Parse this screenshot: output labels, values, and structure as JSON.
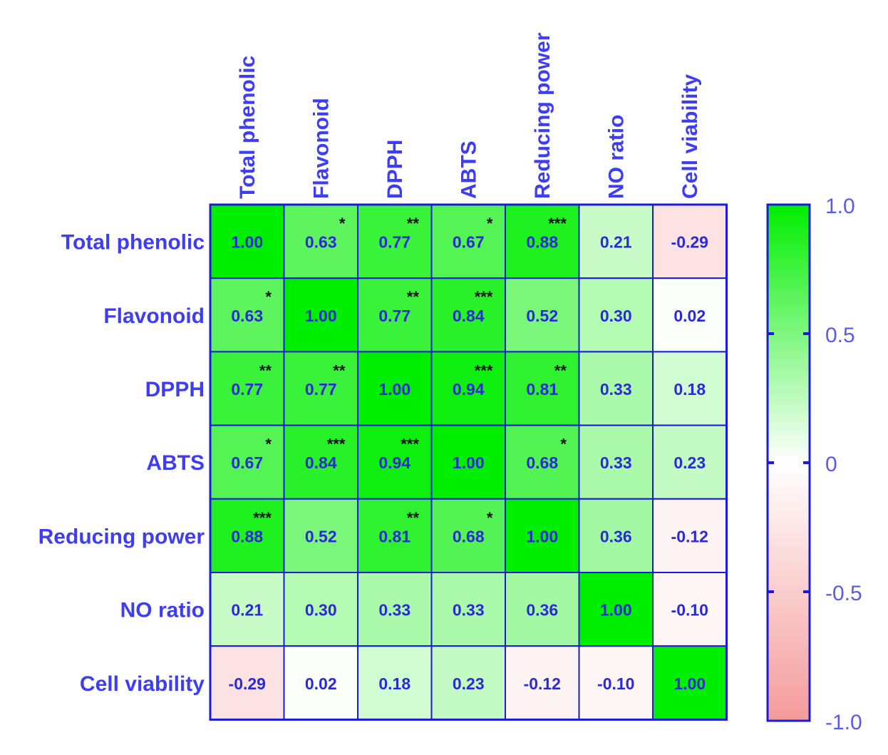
{
  "chart_data": {
    "type": "heatmap",
    "variables": [
      "Total phenolic",
      "Flavonoid",
      "DPPH",
      "ABTS",
      "Reducing power",
      "NO ratio",
      "Cell viability"
    ],
    "values": [
      [
        1.0,
        0.63,
        0.77,
        0.67,
        0.88,
        0.21,
        -0.29
      ],
      [
        0.63,
        1.0,
        0.77,
        0.84,
        0.52,
        0.3,
        0.02
      ],
      [
        0.77,
        0.77,
        1.0,
        0.94,
        0.81,
        0.33,
        0.18
      ],
      [
        0.67,
        0.84,
        0.94,
        1.0,
        0.68,
        0.33,
        0.23
      ],
      [
        0.88,
        0.52,
        0.81,
        0.68,
        1.0,
        0.36,
        -0.12
      ],
      [
        0.21,
        0.3,
        0.33,
        0.33,
        0.36,
        1.0,
        -0.1
      ],
      [
        -0.29,
        0.02,
        0.18,
        0.23,
        -0.12,
        -0.1,
        1.0
      ]
    ],
    "labels": [
      [
        "1.00",
        "0.63",
        "0.77",
        "0.67",
        "0.88",
        "0.21",
        "-0.29"
      ],
      [
        "0.63",
        "1.00",
        "0.77",
        "0.84",
        "0.52",
        "0.30",
        "0.02"
      ],
      [
        "0.77",
        "0.77",
        "1.00",
        "0.94",
        "0.81",
        "0.33",
        "0.18"
      ],
      [
        "0.67",
        "0.84",
        "0.94",
        "1.00",
        "0.68",
        "0.33",
        "0.23"
      ],
      [
        "0.88",
        "0.52",
        "0.81",
        "0.68",
        "1.00",
        "0.36",
        "-0.12"
      ],
      [
        "0.21",
        "0.30",
        "0.33",
        "0.33",
        "0.36",
        "1.00",
        "-0.10"
      ],
      [
        "-0.29",
        "0.02",
        "0.18",
        "0.23",
        "-0.12",
        "-0.10",
        "1.00"
      ]
    ],
    "significance": [
      [
        "",
        "*",
        "**",
        "*",
        "***",
        "",
        ""
      ],
      [
        "*",
        "",
        "**",
        "***",
        "",
        "",
        ""
      ],
      [
        "**",
        "**",
        "",
        "***",
        "**",
        "",
        ""
      ],
      [
        "*",
        "***",
        "***",
        "",
        "*",
        "",
        ""
      ],
      [
        "***",
        "",
        "**",
        "*",
        "",
        "",
        ""
      ],
      [
        "",
        "",
        "",
        "",
        "",
        "",
        ""
      ],
      [
        "",
        "",
        "",
        "",
        "",
        "",
        ""
      ]
    ],
    "colorbar": {
      "range": [
        -1.0,
        1.0
      ],
      "ticks": [
        1.0,
        0.5,
        0,
        -0.5,
        -1.0
      ],
      "tick_labels": [
        "1.0",
        "0.5",
        "0",
        "-0.5",
        "-1.0"
      ],
      "colors": {
        "max": "#00ee00",
        "mid": "#ffffff",
        "min": "#f49b9b"
      }
    },
    "colors": {
      "label": "#3d3df5",
      "value": "#2a2ad8",
      "star": "#111111",
      "border": "#1a1ad8"
    }
  }
}
